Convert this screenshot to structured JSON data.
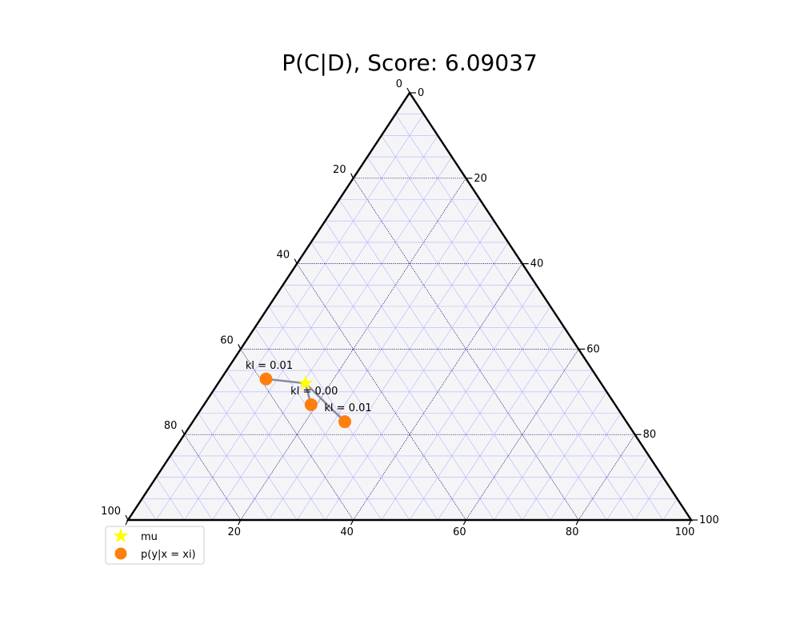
{
  "chart_data": {
    "type": "scatter",
    "chart_kind": "ternary",
    "title": "P(C|D), Score: 6.09037",
    "scale": 100,
    "tick_values": [
      0,
      20,
      40,
      60,
      80,
      100
    ],
    "minor_grid_step": 5,
    "grid": true,
    "background_color": "#f5f5f7",
    "major_grid_color": "#000066",
    "minor_grid_color": "#b4b4ff",
    "series": [
      {
        "name": "mu",
        "marker": "star",
        "color": "#ffff00",
        "points": [
          {
            "a": 32.0,
            "b": 52.5,
            "c": 15.5
          }
        ]
      },
      {
        "name": "p(y|x = xi)",
        "marker": "circle",
        "color": "#ff7f0e",
        "points": [
          {
            "a": 23.0,
            "b": 50.0,
            "c": 27.0
          },
          {
            "a": 27.0,
            "b": 54.0,
            "c": 19.0
          },
          {
            "a": 33.0,
            "b": 59.0,
            "c": 8.0
          }
        ]
      }
    ],
    "annotations": [
      "kl = 0.01",
      "kl = 0.00",
      "kl = 0.01"
    ],
    "legend_position": "lower-left"
  }
}
